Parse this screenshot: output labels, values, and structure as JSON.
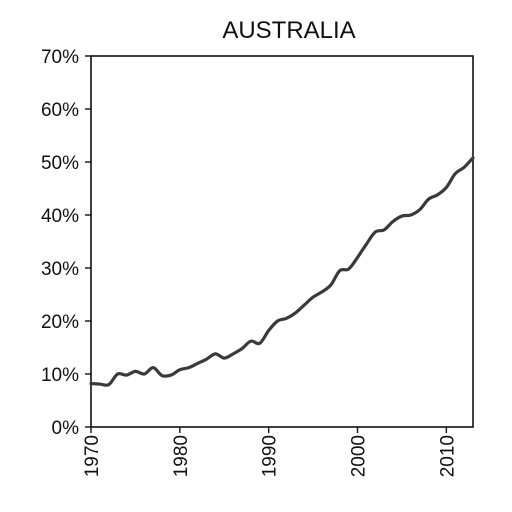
{
  "chart_data": {
    "type": "line",
    "title": "AUSTRALIA",
    "xlabel": "",
    "ylabel": "",
    "xlim": [
      1970,
      2013
    ],
    "ylim": [
      0,
      70
    ],
    "x_ticks": [
      1970,
      1980,
      1990,
      2000,
      2010
    ],
    "x_tick_labels": [
      "1970",
      "1980",
      "1990",
      "2000",
      "2010"
    ],
    "y_ticks": [
      0,
      10,
      20,
      30,
      40,
      50,
      60,
      70
    ],
    "y_tick_labels": [
      "0%",
      "10%",
      "20%",
      "30%",
      "40%",
      "50%",
      "60%",
      "70%"
    ],
    "grid": false,
    "legend": "none",
    "line_color": "#3a3a3a",
    "series": [
      {
        "x": [
          1970,
          1971,
          1972,
          1973,
          1974,
          1975,
          1976,
          1977,
          1978,
          1979,
          1980,
          1981,
          1982,
          1983,
          1984,
          1985,
          1986,
          1987,
          1988,
          1989,
          1990,
          1991,
          1992,
          1993,
          1994,
          1995,
          1996,
          1997,
          1998,
          1999,
          2000,
          2001,
          2002,
          2003,
          2004,
          2005,
          2006,
          2007,
          2008,
          2009,
          2010,
          2011,
          2012,
          2013
        ],
        "values": [
          8.2,
          8.1,
          8.0,
          10.0,
          9.8,
          10.5,
          10.0,
          11.2,
          9.7,
          9.8,
          10.8,
          11.2,
          12.0,
          12.8,
          13.8,
          13.0,
          13.8,
          14.8,
          16.2,
          15.8,
          18.2,
          20.0,
          20.5,
          21.5,
          23.0,
          24.5,
          25.5,
          26.8,
          29.5,
          29.8,
          32.0,
          34.5,
          36.8,
          37.2,
          38.8,
          39.8,
          40.0,
          41.0,
          43.0,
          43.8,
          45.2,
          47.8,
          49.0,
          50.8
        ]
      }
    ]
  }
}
